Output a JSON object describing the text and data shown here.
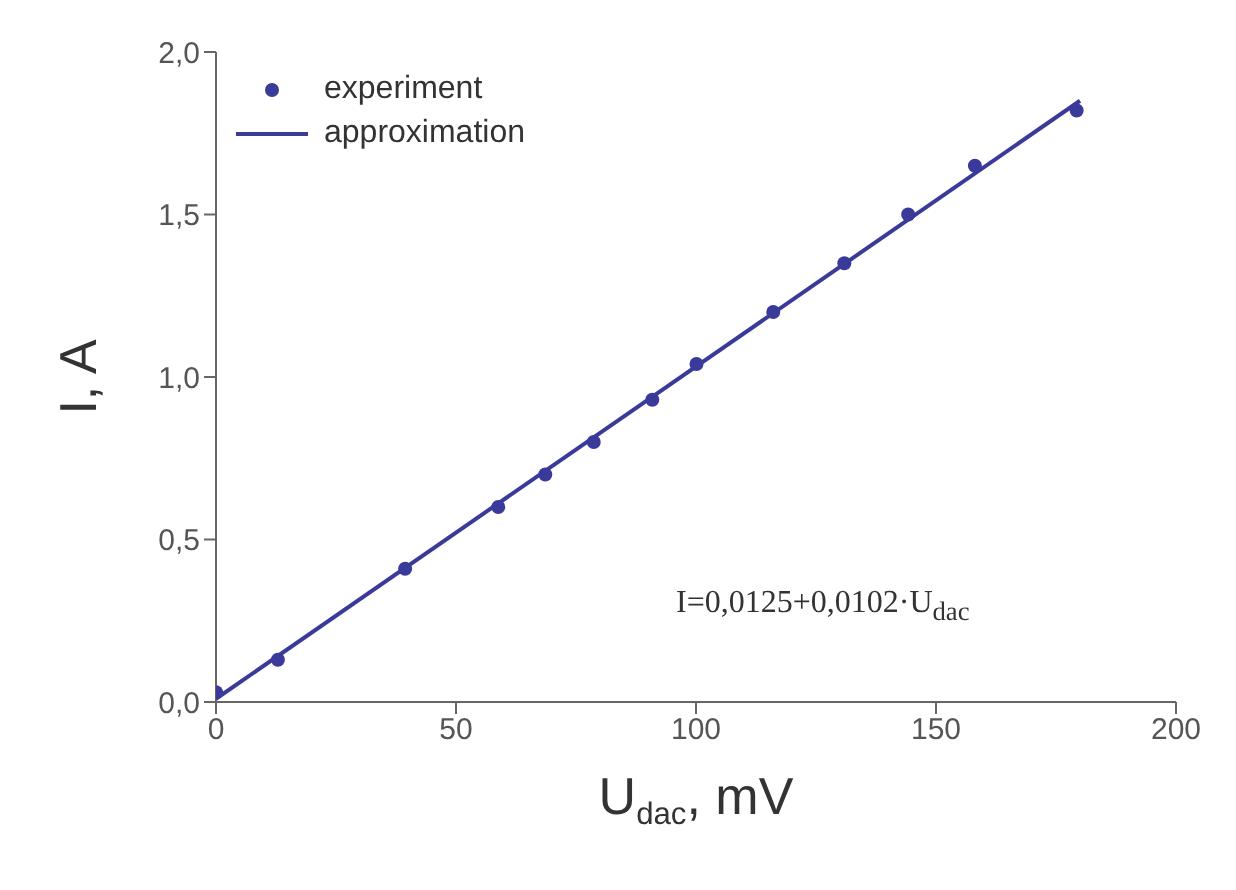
{
  "chart_data": {
    "type": "scatter",
    "xlabel": "U$_{dac}$, mV",
    "ylabel": "I, A",
    "annotations": [
      "I=0,0125+0,0102·U$_{dac}$"
    ],
    "series": [
      {
        "name": "experiment",
        "color": "#3a3a9a",
        "marker": "circle",
        "x": [
          0,
          12.9,
          39.4,
          58.8,
          68.6,
          78.7,
          90.9,
          100.1,
          116.1,
          130.9,
          144.2,
          158.1,
          179.3
        ],
        "values": [
          0.03,
          0.13,
          0.41,
          0.6,
          0.7,
          0.8,
          0.93,
          1.04,
          1.2,
          1.35,
          1.5,
          1.65,
          1.82
        ]
      },
      {
        "name": "approximation",
        "type": "line",
        "color": "#3a3a9a",
        "marker": "none",
        "line_style": "solid",
        "x": [
          0,
          180
        ],
        "values": [
          0.01,
          1.85
        ]
      }
    ],
    "xlim": [
      0,
      200
    ],
    "xticks": [
      0,
      50,
      100,
      150,
      200
    ],
    "ylim": [
      0,
      2
    ],
    "yticks": [
      {
        "value": 0,
        "label": "0,0"
      },
      {
        "value": 0.5,
        "label": "0,5"
      },
      {
        "value": 1,
        "label": "1,0"
      },
      {
        "value": 1.5,
        "label": "1,5"
      },
      {
        "value": 2,
        "label": "2,0"
      }
    ],
    "grid": false,
    "legend": "top left"
  }
}
